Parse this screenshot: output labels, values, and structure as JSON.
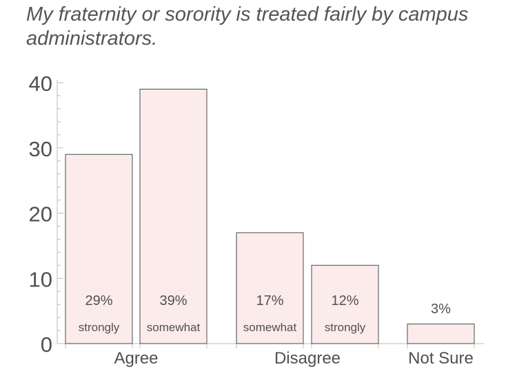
{
  "chart_data": {
    "type": "bar",
    "title": "My fraternity or sorority is treated fairly by campus administrators.",
    "xlabel": "",
    "ylabel": "",
    "ylim": [
      0,
      40
    ],
    "yticks": [
      0,
      10,
      20,
      30,
      40
    ],
    "grid": false,
    "bars": [
      {
        "value": 29,
        "pct_label": "29%",
        "sub_label": "strongly"
      },
      {
        "value": 39,
        "pct_label": "39%",
        "sub_label": "somewhat"
      },
      {
        "value": 17,
        "pct_label": "17%",
        "sub_label": "somewhat"
      },
      {
        "value": 12,
        "pct_label": "12%",
        "sub_label": "strongly"
      },
      {
        "value": 3,
        "pct_label": "3%",
        "sub_label": ""
      }
    ],
    "groups": [
      {
        "label": "Agree",
        "bars": [
          0,
          1
        ]
      },
      {
        "label": "Disagree",
        "bars": [
          2,
          3
        ]
      },
      {
        "label": "Not Sure",
        "bars": [
          4
        ]
      }
    ],
    "colors": {
      "bar_fill": "#fcebeb",
      "bar_stroke": "#4a4a4a",
      "axis": "#bbbbbb",
      "text": "#555555"
    }
  }
}
